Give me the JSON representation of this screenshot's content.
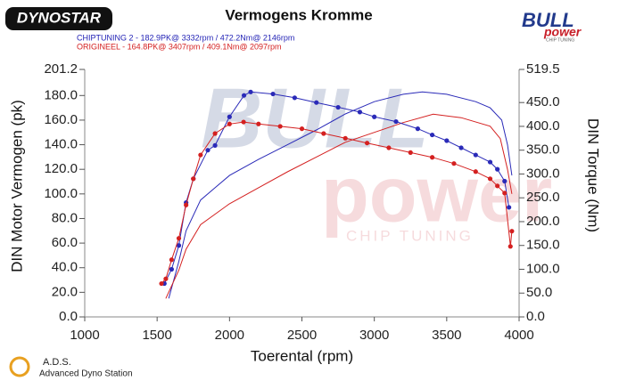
{
  "chart_data": {
    "type": "line",
    "title": "Vermogens Kromme",
    "brand": "DYNOSTAR",
    "logo": {
      "top": "BULL",
      "bottom": "power",
      "tag": "CHIP TUNING"
    },
    "watermark": {
      "top": "BULL",
      "bottom": "power",
      "tag": "CHIP TUNING"
    },
    "footer": {
      "title": "A.D.S.",
      "subtitle": "Advanced Dyno Station"
    },
    "subtitles": [
      {
        "text": "CHIPTUNING 2  - 182.9PK@ 3332rpm / 472.2Nm@ 2146rpm",
        "color": "#1f1fb4"
      },
      {
        "text": "ORIGINEEL  - 164.8PK@ 3407rpm / 409.1Nm@ 2097rpm",
        "color": "#d42020"
      }
    ],
    "xlabel": "Toerental (rpm)",
    "ylabel": "DIN Motor Vermogen (pk)",
    "y2label": "DIN Torque (Nm)",
    "xlim": [
      1000,
      4000
    ],
    "xticks": [
      1000,
      1500,
      2000,
      2500,
      3000,
      3500,
      4000
    ],
    "ylim": [
      0,
      201.2
    ],
    "yticks": [
      {
        "value": 0,
        "label": "0.0"
      },
      {
        "value": 20,
        "label": "20.0"
      },
      {
        "value": 40,
        "label": "40.0"
      },
      {
        "value": 60,
        "label": "60.0"
      },
      {
        "value": 80,
        "label": "80.0"
      },
      {
        "value": 100,
        "label": "100.0"
      },
      {
        "value": 120,
        "label": "120.0"
      },
      {
        "value": 140,
        "label": "140.0"
      },
      {
        "value": 160,
        "label": "160.0"
      },
      {
        "value": 180,
        "label": "180.0"
      },
      201.2
    ],
    "y2lim": [
      0,
      519.5
    ],
    "y2ticks": [
      {
        "value": 0,
        "label": "0.0"
      },
      {
        "value": 50,
        "label": "50.0"
      },
      {
        "value": 100,
        "label": "100.0"
      },
      {
        "value": 150,
        "label": "150.0"
      },
      {
        "value": 200,
        "label": "200.0"
      },
      {
        "value": 250,
        "label": "250.0"
      },
      {
        "value": 300,
        "label": "300.0"
      },
      {
        "value": 350,
        "label": "350.0"
      },
      {
        "value": 400,
        "label": "400.0"
      },
      {
        "value": 450,
        "label": "450.0"
      },
      519.5
    ],
    "series": [
      {
        "color": "#2a2ab8",
        "markers": false,
        "x": [
          1580,
          1650,
          1700,
          1800,
          1900,
          2000,
          2200,
          2400,
          2600,
          2800,
          3000,
          3200,
          3332,
          3500,
          3700,
          3800,
          3880,
          3920,
          3950
        ],
        "values": [
          15,
          45,
          70,
          95,
          105,
          115,
          128,
          140,
          152,
          165,
          175,
          181,
          182.9,
          181,
          175,
          170,
          160,
          140,
          115
        ]
      },
      {
        "color": "#d42020",
        "markers": false,
        "x": [
          1560,
          1650,
          1700,
          1800,
          2000,
          2200,
          2400,
          2600,
          2800,
          3000,
          3200,
          3407,
          3600,
          3800,
          3870,
          3920,
          3950
        ],
        "values": [
          15,
          38,
          55,
          75,
          92,
          105,
          118,
          130,
          142,
          150,
          158,
          164.8,
          162,
          155,
          145,
          120,
          100
        ]
      },
      {
        "color": "#2a2ab8",
        "markers": true,
        "axis": "y2",
        "x": [
          1550,
          1600,
          1650,
          1700,
          1750,
          1850,
          1900,
          2000,
          2100,
          2146,
          2300,
          2450,
          2600,
          2750,
          2900,
          3000,
          3150,
          3300,
          3400,
          3500,
          3600,
          3700,
          3800,
          3850,
          3900,
          3930
        ],
        "values": [
          70,
          100,
          150,
          240,
          290,
          350,
          360,
          420,
          465,
          472.2,
          468,
          460,
          450,
          440,
          430,
          420,
          410,
          395,
          382,
          370,
          355,
          340,
          325,
          310,
          285,
          230
        ]
      },
      {
        "color": "#d42020",
        "markers": true,
        "axis": "y2",
        "x": [
          1530,
          1560,
          1600,
          1650,
          1700,
          1750,
          1800,
          1900,
          2000,
          2097,
          2200,
          2350,
          2500,
          2650,
          2800,
          2950,
          3100,
          3250,
          3400,
          3550,
          3700,
          3800,
          3850,
          3900,
          3940,
          3950
        ],
        "values": [
          70,
          80,
          120,
          165,
          235,
          290,
          340,
          385,
          405,
          409.1,
          405,
          400,
          395,
          385,
          375,
          365,
          355,
          345,
          335,
          322,
          305,
          290,
          275,
          260,
          148,
          180
        ]
      }
    ]
  }
}
